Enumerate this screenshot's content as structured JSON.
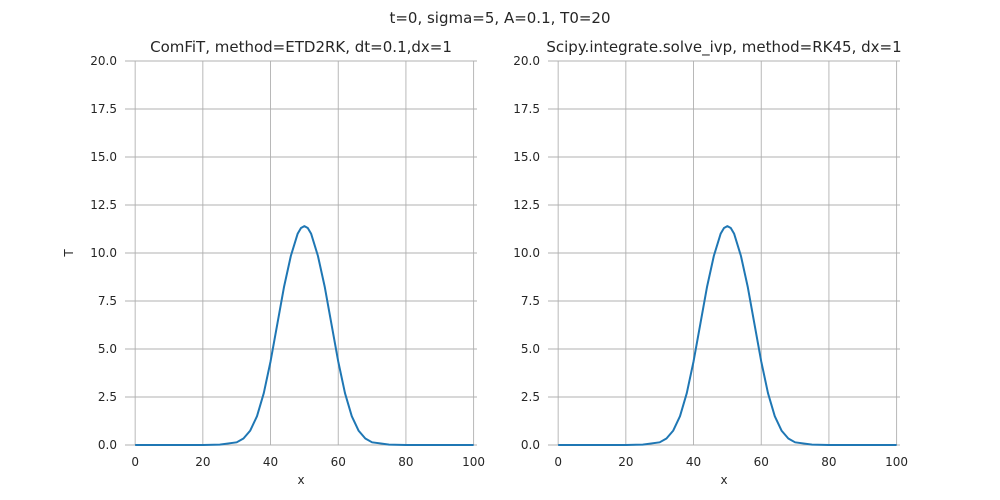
{
  "figure": {
    "suptitle": "t=0, sigma=5, A=0.1, T0=20"
  },
  "chart_data": [
    {
      "type": "line",
      "title": "ComFiT, method=ETD2RK, dt=0.1,dx=1",
      "xlabel": "x",
      "ylabel": "T",
      "xlim": [
        -3,
        101
      ],
      "ylim": [
        0,
        20
      ],
      "xticks": [
        0,
        20,
        40,
        60,
        80,
        100
      ],
      "yticks": [
        0.0,
        2.5,
        5.0,
        7.5,
        10.0,
        12.5,
        15.0,
        17.5,
        20.0
      ],
      "grid": true,
      "series": [
        {
          "color": "#1f77b4",
          "x": [
            0,
            10,
            20,
            25,
            30,
            32,
            34,
            36,
            38,
            40,
            42,
            44,
            46,
            48,
            49,
            50,
            51,
            52,
            54,
            56,
            58,
            60,
            62,
            64,
            66,
            68,
            70,
            75,
            80,
            90,
            100
          ],
          "y": [
            0,
            0,
            0,
            0.02,
            0.14,
            0.34,
            0.75,
            1.5,
            2.7,
            4.35,
            6.3,
            8.25,
            9.85,
            11.0,
            11.3,
            11.4,
            11.3,
            11.0,
            9.85,
            8.25,
            6.3,
            4.35,
            2.7,
            1.5,
            0.75,
            0.34,
            0.14,
            0.02,
            0,
            0,
            0
          ]
        }
      ]
    },
    {
      "type": "line",
      "title": "Scipy.integrate.solve_ivp, method=RK45, dx=1",
      "xlabel": "x",
      "ylabel": "",
      "xlim": [
        -3,
        101
      ],
      "ylim": [
        0,
        20
      ],
      "xticks": [
        0,
        20,
        40,
        60,
        80,
        100
      ],
      "yticks": [
        0.0,
        2.5,
        5.0,
        7.5,
        10.0,
        12.5,
        15.0,
        17.5,
        20.0
      ],
      "grid": true,
      "series": [
        {
          "color": "#1f77b4",
          "x": [
            0,
            10,
            20,
            25,
            30,
            32,
            34,
            36,
            38,
            40,
            42,
            44,
            46,
            48,
            49,
            50,
            51,
            52,
            54,
            56,
            58,
            60,
            62,
            64,
            66,
            68,
            70,
            75,
            80,
            90,
            100
          ],
          "y": [
            0,
            0,
            0,
            0.02,
            0.14,
            0.34,
            0.75,
            1.5,
            2.7,
            4.35,
            6.3,
            8.25,
            9.85,
            11.0,
            11.3,
            11.4,
            11.3,
            11.0,
            9.85,
            8.25,
            6.3,
            4.35,
            2.7,
            1.5,
            0.75,
            0.34,
            0.14,
            0.02,
            0,
            0,
            0
          ]
        }
      ]
    }
  ]
}
